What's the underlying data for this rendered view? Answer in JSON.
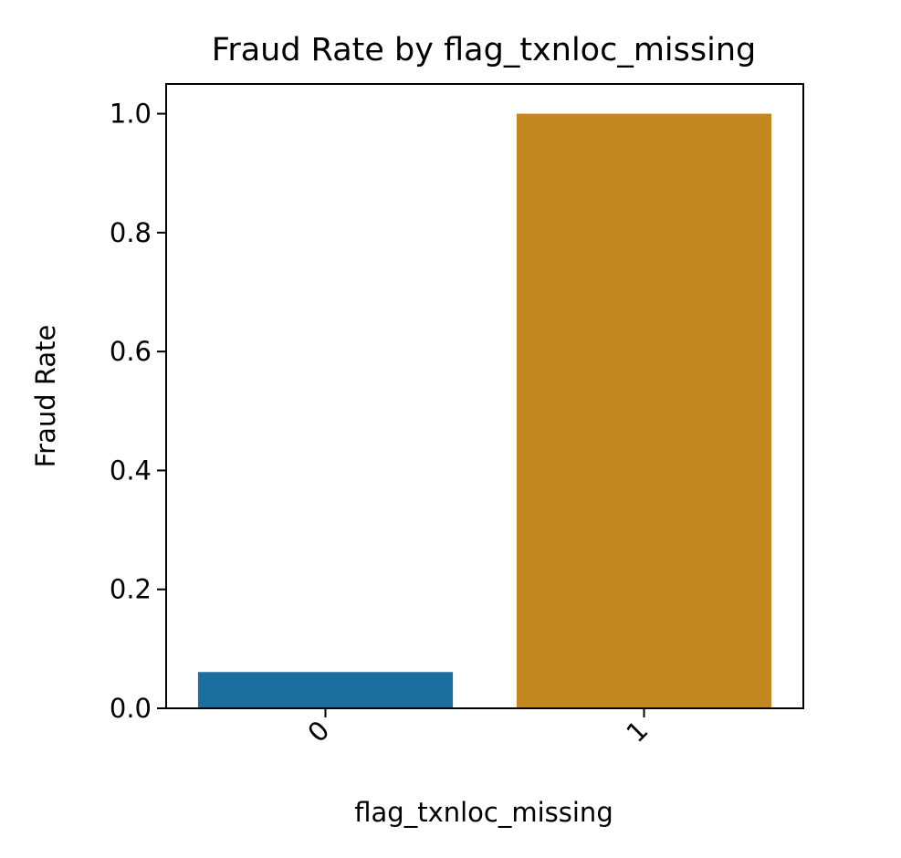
{
  "chart_data": {
    "type": "bar",
    "title": "Fraud Rate by flag_txnloc_missing",
    "xlabel": "flag_txnloc_missing",
    "ylabel": "Fraud Rate",
    "categories": [
      "0",
      "1"
    ],
    "values": [
      0.061,
      1.0
    ],
    "colors": [
      "#1a6f9e",
      "#c38820"
    ],
    "ylim": [
      0,
      1.05
    ],
    "yticks": [
      0.0,
      0.2,
      0.4,
      0.6,
      0.8,
      1.0
    ],
    "ytick_labels": [
      "0.0",
      "0.2",
      "0.4",
      "0.6",
      "0.8",
      "1.0"
    ],
    "xtick_rotation_deg": 45,
    "grid": false,
    "legend": "none"
  }
}
